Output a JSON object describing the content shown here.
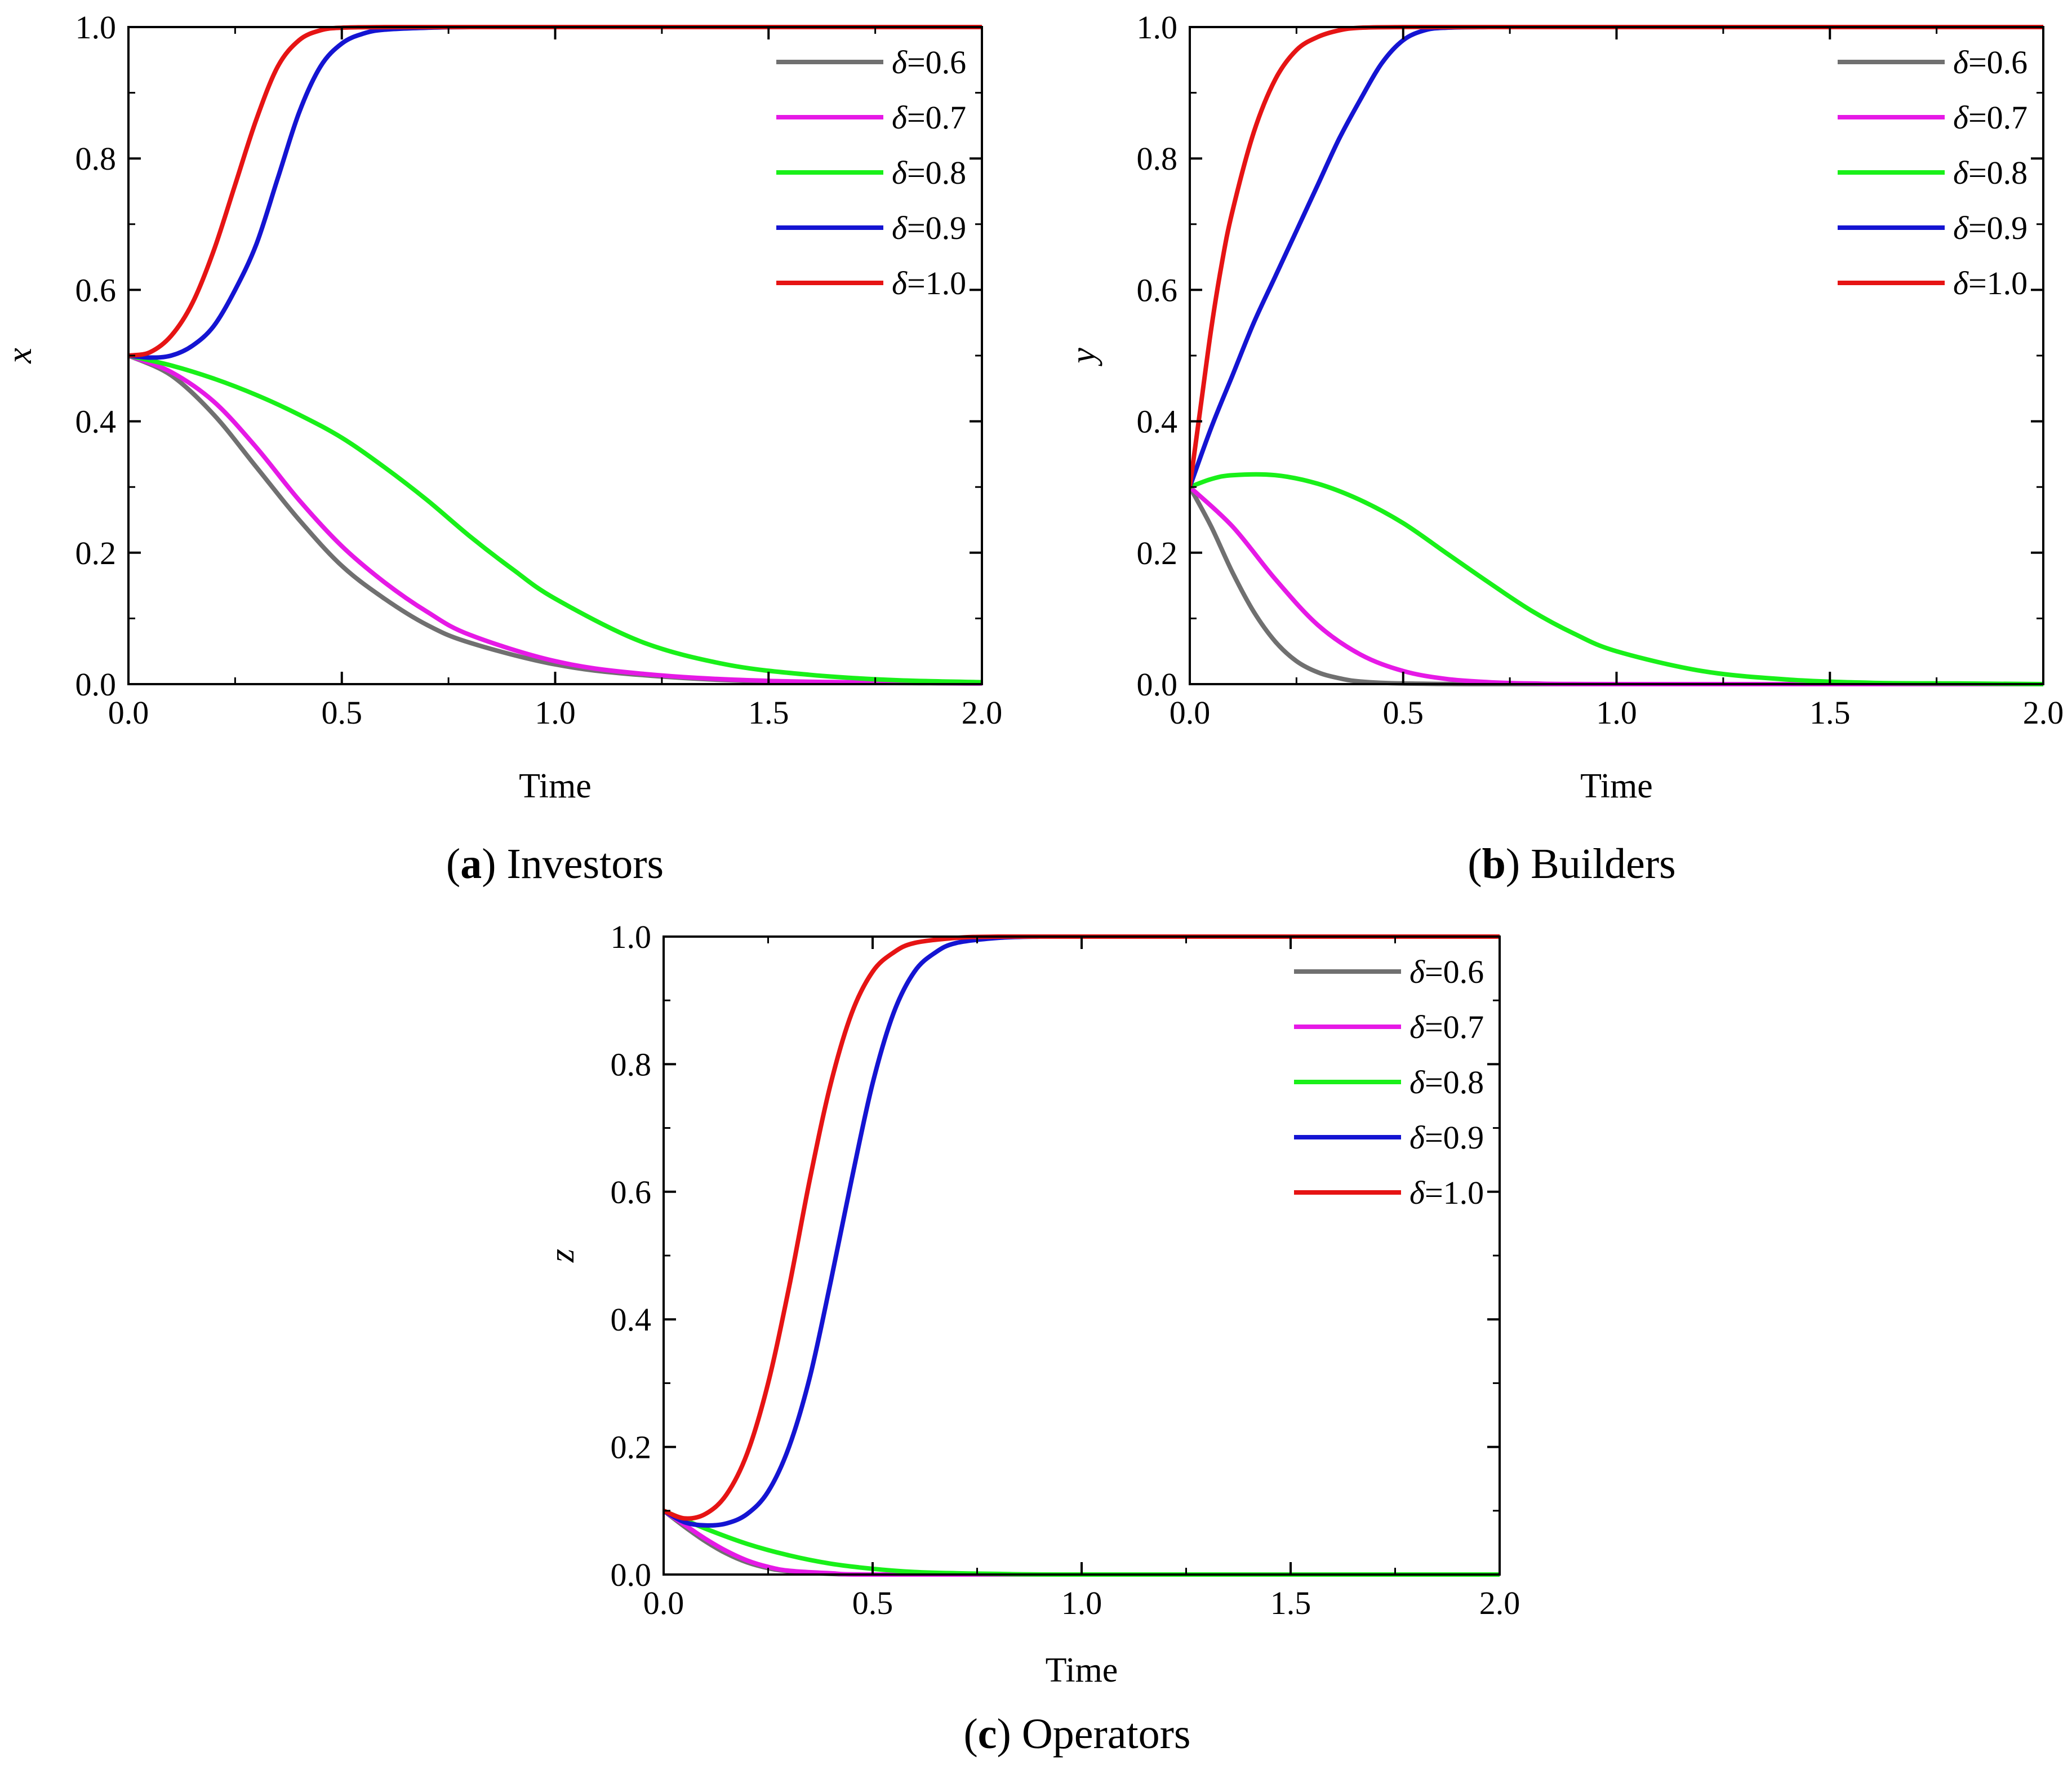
{
  "figure": {
    "captions": [
      {
        "id": "a",
        "letter": "a",
        "text": "Investors"
      },
      {
        "id": "b",
        "letter": "b",
        "text": "Builders"
      },
      {
        "id": "c",
        "letter": "c",
        "text": "Operators"
      }
    ]
  },
  "chart_data": [
    {
      "id": "a",
      "type": "line",
      "title": "(a) Investors",
      "xlabel": "Time",
      "ylabel": "x",
      "xlim": [
        0,
        2
      ],
      "ylim": [
        0,
        1
      ],
      "xticks": [
        "0.0",
        "0.5",
        "1.0",
        "1.5",
        "2.0"
      ],
      "yticks": [
        "0.0",
        "0.2",
        "0.4",
        "0.6",
        "0.8",
        "1.0"
      ],
      "legend_position": "top-right",
      "series": [
        {
          "name": "δ=0.6",
          "symbol": "δ",
          "value_text": "=0.6",
          "color": "#707070",
          "x": [
            0,
            0.1,
            0.2,
            0.3,
            0.4,
            0.5,
            0.6,
            0.7,
            0.8,
            1.0,
            1.2,
            1.5,
            2.0
          ],
          "y": [
            0.5,
            0.47,
            0.41,
            0.33,
            0.25,
            0.18,
            0.13,
            0.09,
            0.063,
            0.03,
            0.014,
            0.004,
            0.001
          ]
        },
        {
          "name": "δ=0.7",
          "symbol": "δ",
          "value_text": "=0.7",
          "color": "#e619e6",
          "x": [
            0,
            0.1,
            0.2,
            0.3,
            0.4,
            0.5,
            0.6,
            0.7,
            0.8,
            1.0,
            1.2,
            1.5,
            2.0
          ],
          "y": [
            0.5,
            0.475,
            0.43,
            0.36,
            0.28,
            0.21,
            0.155,
            0.11,
            0.075,
            0.035,
            0.016,
            0.005,
            0.001
          ]
        },
        {
          "name": "δ=0.8",
          "symbol": "δ",
          "value_text": "=0.8",
          "color": "#19f019",
          "x": [
            0,
            0.1,
            0.2,
            0.3,
            0.4,
            0.5,
            0.6,
            0.7,
            0.8,
            0.9,
            1.0,
            1.2,
            1.4,
            1.6,
            1.8,
            2.0
          ],
          "y": [
            0.5,
            0.485,
            0.465,
            0.44,
            0.41,
            0.375,
            0.33,
            0.28,
            0.225,
            0.175,
            0.13,
            0.065,
            0.03,
            0.014,
            0.006,
            0.003
          ]
        },
        {
          "name": "δ=0.9",
          "symbol": "δ",
          "value_text": "=0.9",
          "color": "#1414d2",
          "x": [
            0,
            0.05,
            0.1,
            0.15,
            0.2,
            0.25,
            0.3,
            0.35,
            0.4,
            0.45,
            0.5,
            0.55,
            0.6,
            0.7,
            0.8,
            1.0,
            2.0
          ],
          "y": [
            0.5,
            0.497,
            0.5,
            0.515,
            0.545,
            0.6,
            0.67,
            0.77,
            0.87,
            0.94,
            0.975,
            0.99,
            0.996,
            0.999,
            1.0,
            1.0,
            1.0
          ]
        },
        {
          "name": "δ=1.0",
          "symbol": "δ",
          "value_text": "=1.0",
          "color": "#e61414",
          "x": [
            0,
            0.05,
            0.1,
            0.15,
            0.2,
            0.25,
            0.3,
            0.35,
            0.4,
            0.45,
            0.5,
            0.6,
            0.7,
            1.0,
            2.0
          ],
          "y": [
            0.5,
            0.505,
            0.53,
            0.58,
            0.66,
            0.76,
            0.86,
            0.94,
            0.98,
            0.995,
            0.999,
            1.0,
            1.0,
            1.0,
            1.0
          ]
        }
      ]
    },
    {
      "id": "b",
      "type": "line",
      "title": "(b) Builders",
      "xlabel": "Time",
      "ylabel": "y",
      "xlim": [
        0,
        2
      ],
      "ylim": [
        0,
        1
      ],
      "xticks": [
        "0.0",
        "0.5",
        "1.0",
        "1.5",
        "2.0"
      ],
      "yticks": [
        "0.0",
        "0.2",
        "0.4",
        "0.6",
        "0.8",
        "1.0"
      ],
      "legend_position": "top-right",
      "series": [
        {
          "name": "δ=0.6",
          "symbol": "δ",
          "value_text": "=0.6",
          "color": "#707070",
          "x": [
            0,
            0.05,
            0.1,
            0.15,
            0.2,
            0.25,
            0.3,
            0.35,
            0.4,
            0.5,
            0.7,
            1.0,
            2.0
          ],
          "y": [
            0.3,
            0.24,
            0.17,
            0.11,
            0.065,
            0.035,
            0.018,
            0.009,
            0.004,
            0.001,
            0,
            0,
            0
          ]
        },
        {
          "name": "δ=0.7",
          "symbol": "δ",
          "value_text": "=0.7",
          "color": "#e619e6",
          "x": [
            0,
            0.1,
            0.2,
            0.3,
            0.4,
            0.5,
            0.6,
            0.7,
            0.8,
            1.0,
            2.0
          ],
          "y": [
            0.3,
            0.24,
            0.16,
            0.09,
            0.045,
            0.02,
            0.008,
            0.003,
            0.001,
            0,
            0
          ]
        },
        {
          "name": "δ=0.8",
          "symbol": "δ",
          "value_text": "=0.8",
          "color": "#19f019",
          "x": [
            0,
            0.05,
            0.1,
            0.2,
            0.3,
            0.4,
            0.5,
            0.6,
            0.7,
            0.8,
            0.9,
            1.0,
            1.2,
            1.4,
            1.6,
            1.8,
            2.0
          ],
          "y": [
            0.3,
            0.312,
            0.318,
            0.318,
            0.305,
            0.28,
            0.245,
            0.2,
            0.155,
            0.112,
            0.077,
            0.05,
            0.02,
            0.007,
            0.002,
            0.001,
            0
          ]
        },
        {
          "name": "δ=0.9",
          "symbol": "δ",
          "value_text": "=0.9",
          "color": "#1414d2",
          "x": [
            0,
            0.05,
            0.1,
            0.15,
            0.2,
            0.25,
            0.3,
            0.35,
            0.4,
            0.45,
            0.5,
            0.55,
            0.6,
            0.7,
            0.8,
            1.0,
            2.0
          ],
          "y": [
            0.3,
            0.39,
            0.47,
            0.55,
            0.62,
            0.69,
            0.76,
            0.83,
            0.89,
            0.945,
            0.98,
            0.995,
            0.999,
            1.0,
            1.0,
            1.0,
            1.0
          ]
        },
        {
          "name": "δ=1.0",
          "symbol": "δ",
          "value_text": "=1.0",
          "color": "#e61414",
          "x": [
            0,
            0.025,
            0.05,
            0.075,
            0.1,
            0.15,
            0.2,
            0.25,
            0.3,
            0.35,
            0.4,
            0.5,
            0.6,
            1.0,
            2.0
          ],
          "y": [
            0.3,
            0.42,
            0.54,
            0.64,
            0.72,
            0.84,
            0.92,
            0.965,
            0.985,
            0.995,
            0.999,
            1.0,
            1.0,
            1.0,
            1.0
          ]
        }
      ]
    },
    {
      "id": "c",
      "type": "line",
      "title": "(c) Operators",
      "xlabel": "Time",
      "ylabel": "z",
      "xlim": [
        0,
        2
      ],
      "ylim": [
        0,
        1
      ],
      "xticks": [
        "0.0",
        "0.5",
        "1.0",
        "1.5",
        "2.0"
      ],
      "yticks": [
        "0.0",
        "0.2",
        "0.4",
        "0.6",
        "0.8",
        "1.0"
      ],
      "legend_position": "top-right",
      "series": [
        {
          "name": "δ=0.6",
          "symbol": "δ",
          "value_text": "=0.6",
          "color": "#707070",
          "x": [
            0,
            0.05,
            0.1,
            0.15,
            0.2,
            0.25,
            0.3,
            0.4,
            0.5,
            1.0,
            2.0
          ],
          "y": [
            0.1,
            0.075,
            0.052,
            0.033,
            0.019,
            0.01,
            0.005,
            0.001,
            0,
            0,
            0
          ]
        },
        {
          "name": "δ=0.7",
          "symbol": "δ",
          "value_text": "=0.7",
          "color": "#e619e6",
          "x": [
            0,
            0.05,
            0.1,
            0.15,
            0.2,
            0.25,
            0.3,
            0.4,
            0.5,
            1.0,
            2.0
          ],
          "y": [
            0.1,
            0.078,
            0.056,
            0.037,
            0.022,
            0.012,
            0.006,
            0.002,
            0,
            0,
            0
          ]
        },
        {
          "name": "δ=0.8",
          "symbol": "δ",
          "value_text": "=0.8",
          "color": "#19f019",
          "x": [
            0,
            0.1,
            0.2,
            0.3,
            0.4,
            0.5,
            0.6,
            0.7,
            0.8,
            1.0,
            2.0
          ],
          "y": [
            0.1,
            0.072,
            0.048,
            0.03,
            0.017,
            0.009,
            0.004,
            0.002,
            0.001,
            0,
            0
          ]
        },
        {
          "name": "δ=0.9",
          "symbol": "δ",
          "value_text": "=0.9",
          "color": "#1414d2",
          "x": [
            0,
            0.05,
            0.1,
            0.15,
            0.2,
            0.25,
            0.3,
            0.35,
            0.4,
            0.45,
            0.5,
            0.55,
            0.6,
            0.65,
            0.7,
            0.8,
            0.9,
            1.0,
            2.0
          ],
          "y": [
            0.1,
            0.082,
            0.077,
            0.08,
            0.095,
            0.13,
            0.2,
            0.31,
            0.46,
            0.62,
            0.77,
            0.88,
            0.945,
            0.975,
            0.99,
            0.998,
            1.0,
            1.0,
            1.0
          ]
        },
        {
          "name": "δ=1.0",
          "symbol": "δ",
          "value_text": "=1.0",
          "color": "#e61414",
          "x": [
            0,
            0.05,
            0.1,
            0.15,
            0.2,
            0.25,
            0.3,
            0.35,
            0.4,
            0.45,
            0.5,
            0.55,
            0.6,
            0.7,
            0.8,
            1.0,
            2.0
          ],
          "y": [
            0.1,
            0.088,
            0.095,
            0.125,
            0.19,
            0.3,
            0.45,
            0.62,
            0.77,
            0.88,
            0.945,
            0.975,
            0.99,
            0.998,
            1.0,
            1.0,
            1.0
          ]
        }
      ]
    }
  ]
}
